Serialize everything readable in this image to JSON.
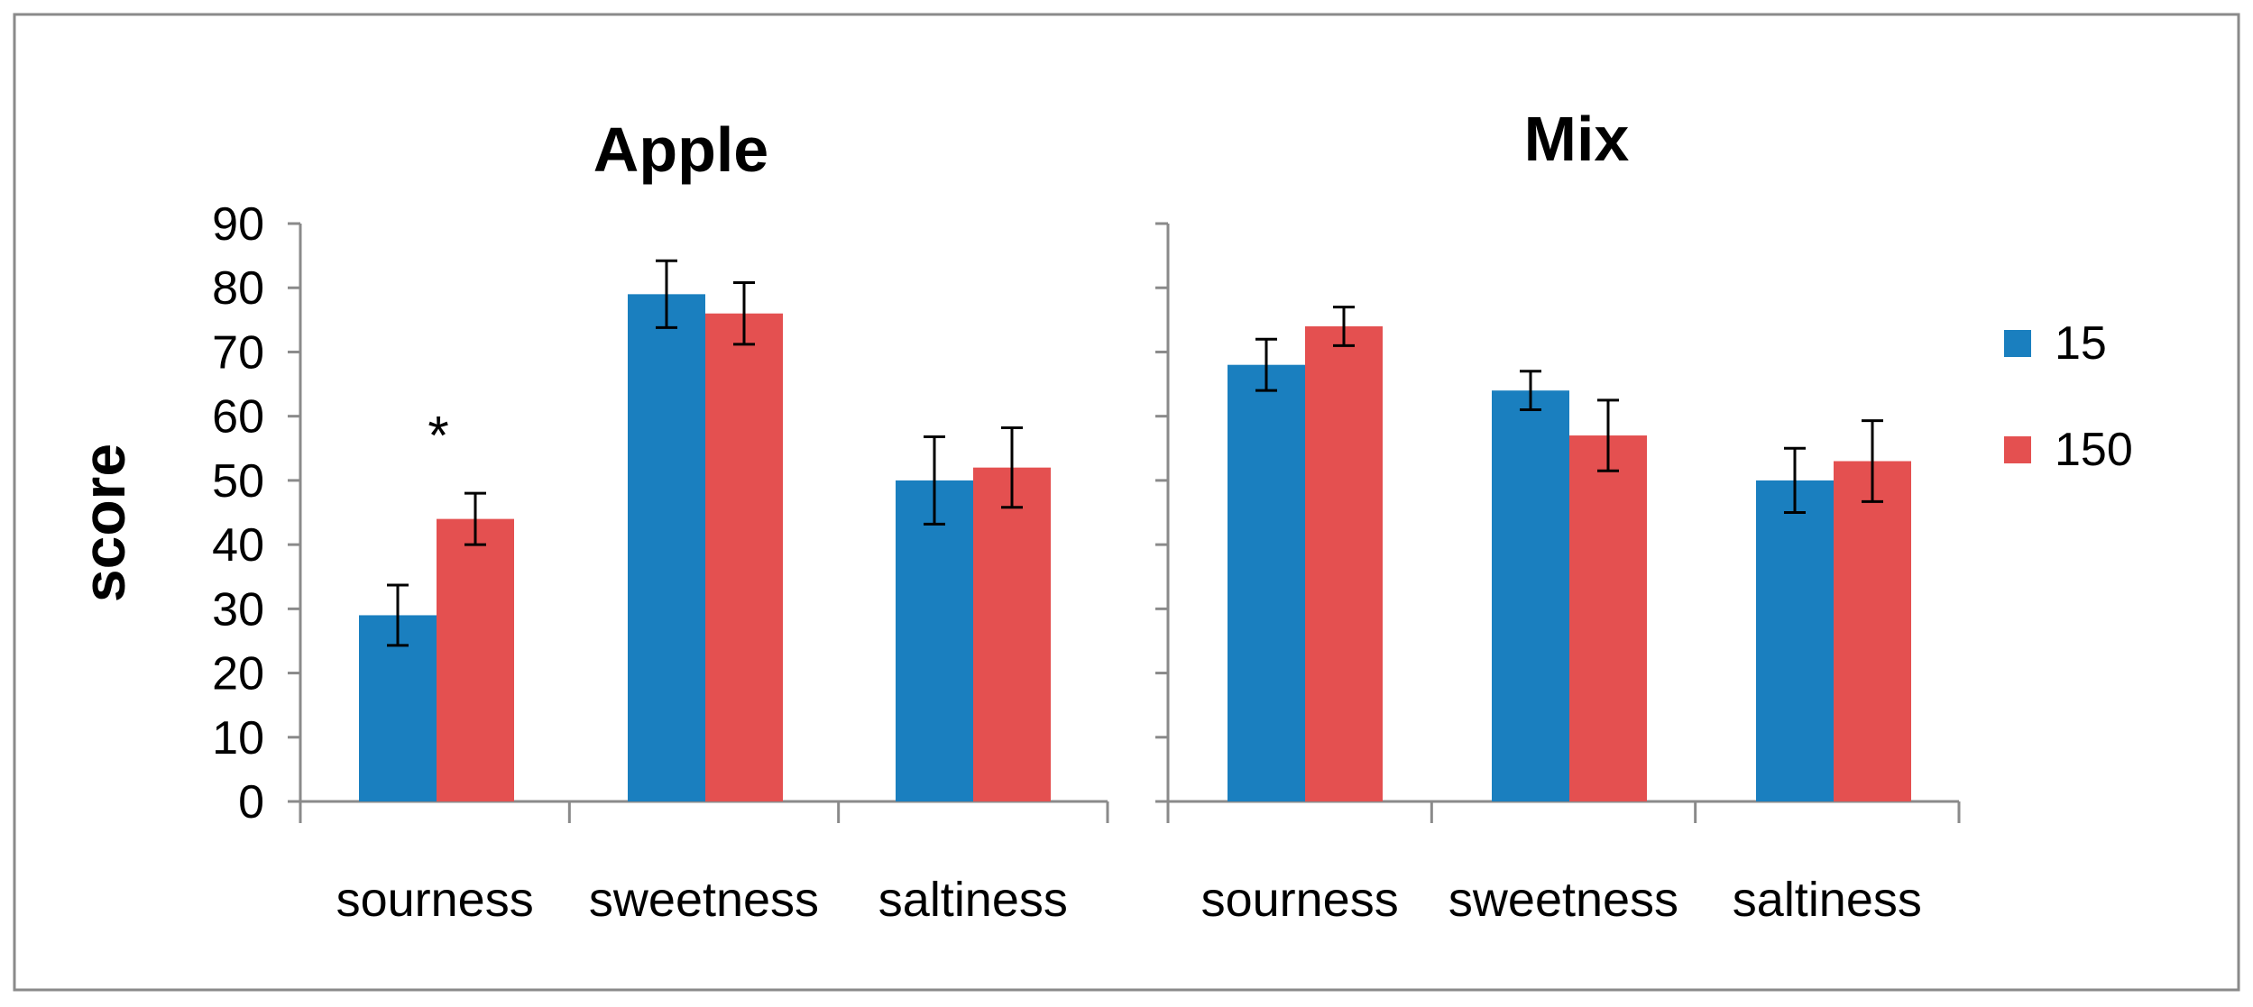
{
  "chart_data": [
    {
      "type": "bar",
      "title": "Apple",
      "xlabel": "",
      "ylabel": "score",
      "ylim": [
        0,
        90
      ],
      "yticks": [
        0,
        10,
        20,
        30,
        40,
        50,
        60,
        70,
        80,
        90
      ],
      "categories": [
        "sourness",
        "sweetness",
        "saltiness"
      ],
      "series": [
        {
          "name": "15",
          "color": "#1a7fbf",
          "values": [
            29,
            79,
            50
          ],
          "errors": [
            4.7,
            5.2,
            6.8
          ]
        },
        {
          "name": "150",
          "color": "#e45050",
          "values": [
            44,
            76,
            52
          ],
          "errors": [
            4,
            4.8,
            6.2
          ]
        }
      ],
      "annotations": [
        {
          "text": "*",
          "category": "sourness",
          "series": "150",
          "value": 60
        }
      ]
    },
    {
      "type": "bar",
      "title": "Mix",
      "xlabel": "",
      "ylabel": "",
      "ylim": [
        0,
        90
      ],
      "categories": [
        "sourness",
        "sweetness",
        "saltiness"
      ],
      "series": [
        {
          "name": "15",
          "color": "#1a7fbf",
          "values": [
            68,
            64,
            50
          ],
          "errors": [
            4,
            3,
            5
          ]
        },
        {
          "name": "150",
          "color": "#e45050",
          "values": [
            74,
            57,
            53
          ],
          "errors": [
            3,
            5.5,
            6.3
          ]
        }
      ]
    }
  ],
  "legend": {
    "position": "right",
    "entries": [
      {
        "name": "15",
        "color": "#1a7fbf"
      },
      {
        "name": "150",
        "color": "#e45050"
      }
    ]
  },
  "style": {
    "border_color": "#8a8a8a",
    "axis_color": "#8a8a8a",
    "error_bar_color": "#000000"
  }
}
